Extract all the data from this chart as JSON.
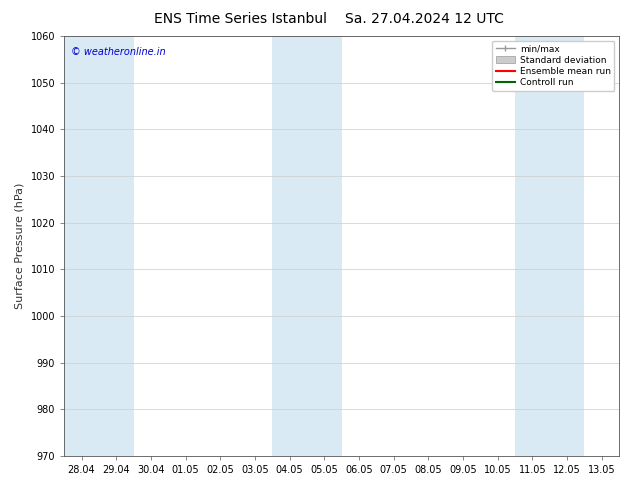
{
  "title_left": "ENS Time Series Istanbul",
  "title_right": "Sa. 27.04.2024 12 UTC",
  "ylabel": "Surface Pressure (hPa)",
  "ylim": [
    970,
    1060
  ],
  "yticks": [
    970,
    980,
    990,
    1000,
    1010,
    1020,
    1030,
    1040,
    1050,
    1060
  ],
  "xtick_labels": [
    "28.04",
    "29.04",
    "30.04",
    "01.05",
    "02.05",
    "03.05",
    "04.05",
    "05.05",
    "06.05",
    "07.05",
    "08.05",
    "09.05",
    "10.05",
    "11.05",
    "12.05",
    "13.05"
  ],
  "x_values": [
    0,
    1,
    2,
    3,
    4,
    5,
    6,
    7,
    8,
    9,
    10,
    11,
    12,
    13,
    14,
    15
  ],
  "shaded_columns": [
    0,
    1,
    6,
    7,
    13,
    14
  ],
  "shaded_color": "#daeaf5",
  "mean_line_color": "#ff0000",
  "control_line_color": "#006600",
  "bg_color": "#ffffff",
  "watermark": "© weatheronline.in",
  "watermark_color": "#0000cc",
  "legend_labels": [
    "min/max",
    "Standard deviation",
    "Ensemble mean run",
    "Controll run"
  ],
  "title_fontsize": 10,
  "tick_fontsize": 7,
  "ylabel_fontsize": 8,
  "axis_color": "#555555",
  "tick_color": "#333333",
  "grid_color": "#cccccc",
  "legend_minmax_color": "#999999",
  "legend_stddev_color": "#cccccc"
}
